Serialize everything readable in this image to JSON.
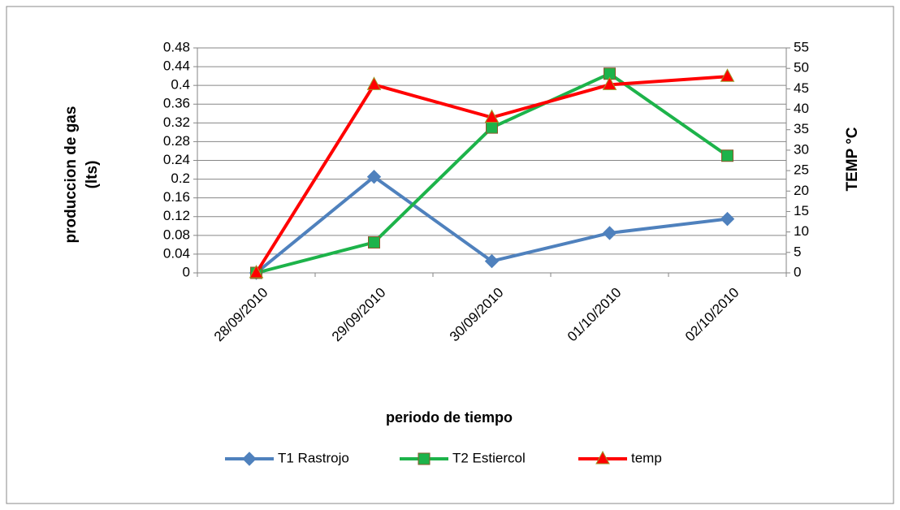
{
  "chart_data": {
    "type": "line",
    "x_label": "periodo de tiempo",
    "y_label": "produccion de gas (lts)",
    "y2_label": "TEMP °C",
    "categories": [
      "28/09/2010",
      "29/09/2010",
      "30/09/2010",
      "01/10/2010",
      "02/10/2010"
    ],
    "series": [
      {
        "name": "T1 Rastrojo",
        "color": "#4f81bd",
        "marker": "diamond",
        "values": [
          0,
          0.205,
          0.025,
          0.085,
          0.115
        ]
      },
      {
        "name": "T2 Estiercol",
        "color": "#1db34a",
        "marker": "square",
        "values": [
          0,
          0.065,
          0.31,
          0.425,
          0.25
        ]
      },
      {
        "name": "temp",
        "color": "#ff0000",
        "marker": "triangle",
        "axis": "y2",
        "values": [
          0,
          46,
          38,
          46,
          48
        ]
      }
    ],
    "ylim": [
      0,
      0.48
    ],
    "yticks": [
      0,
      0.04,
      0.08,
      0.12,
      0.16,
      0.2,
      0.24,
      0.28,
      0.32,
      0.36,
      0.4,
      0.44,
      0.48
    ],
    "y2lim": [
      0,
      55
    ],
    "y2ticks": [
      0,
      5,
      10,
      15,
      20,
      25,
      30,
      35,
      40,
      45,
      50,
      55
    ],
    "grid": true,
    "legend": "bottom"
  }
}
